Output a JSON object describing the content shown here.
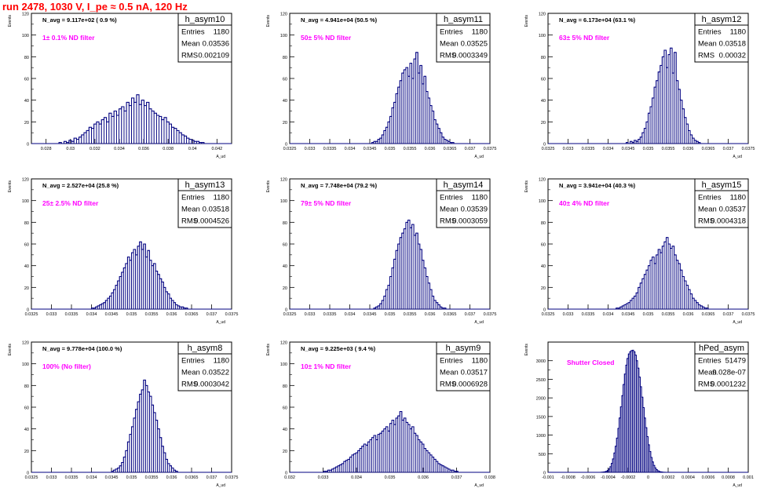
{
  "header": {
    "title": "run 2478,  1030 V, I_pe ≈ 0.5 nA, 120 Hz"
  },
  "stats_labels": {
    "entries": "Entries",
    "mean": "Mean",
    "rms": "RMS"
  },
  "colors": {
    "histogram": "#000080",
    "annotation": "#ff00ff",
    "title": "#ff0000",
    "frame": "#000000"
  },
  "chart_data": [
    {
      "type": "bar",
      "name": "h_asym10",
      "info": "N_avg = 9.117e+02 ( 0.9 %)",
      "filter": "1± 0.1% ND filter",
      "entries": "1180",
      "mean": "0.03536",
      "rms": "0.002109",
      "xlabel": "A_ud",
      "ylabel": "Events",
      "xlim": [
        0.0268,
        0.0432
      ],
      "ylim": [
        0,
        120
      ],
      "xticks": [
        "0.028",
        "0.03",
        "0.032",
        "0.034",
        "0.036",
        "0.038",
        "0.04",
        "0.042"
      ],
      "yticks": [
        "0",
        "20",
        "40",
        "60",
        "80",
        "100",
        "120"
      ],
      "values": [
        0,
        0,
        0,
        0,
        0,
        0,
        0,
        0,
        0,
        0,
        0,
        1,
        0,
        2,
        1,
        3,
        2,
        5,
        4,
        6,
        8,
        10,
        12,
        15,
        14,
        18,
        20,
        18,
        22,
        24,
        20,
        28,
        25,
        30,
        26,
        32,
        34,
        30,
        38,
        35,
        42,
        38,
        45,
        36,
        40,
        35,
        38,
        32,
        30,
        28,
        26,
        25,
        22,
        24,
        20,
        18,
        15,
        14,
        12,
        10,
        8,
        7,
        5,
        4,
        3,
        2,
        2,
        1,
        1,
        0,
        0,
        0,
        0,
        0,
        0,
        0,
        0,
        0,
        0,
        0
      ]
    },
    {
      "type": "bar",
      "name": "h_asym11",
      "info": "N_avg = 4.941e+04 (50.5 %)",
      "filter": "50± 5% ND filter",
      "entries": "1180",
      "mean": "0.03525",
      "rms": "0.0003349",
      "xlabel": "A_ud",
      "ylabel": "Events",
      "xlim": [
        0.0325,
        0.0375
      ],
      "ylim": [
        0,
        120
      ],
      "xticks": [
        "0.0325",
        "0.033",
        "0.0335",
        "0.034",
        "0.0345",
        "0.035",
        "0.0355",
        "0.036",
        "0.0365",
        "0.037",
        "0.0375"
      ],
      "yticks": [
        "0",
        "20",
        "40",
        "60",
        "80",
        "100",
        "120"
      ],
      "values": [
        0,
        0,
        0,
        0,
        0,
        0,
        0,
        0,
        0,
        0,
        0,
        0,
        0,
        0,
        0,
        0,
        0,
        0,
        0,
        0,
        0,
        0,
        0,
        0,
        0,
        0,
        0,
        0,
        0,
        0,
        0,
        0,
        0,
        0,
        0,
        0,
        0,
        0,
        0,
        0,
        0,
        1,
        2,
        2,
        4,
        5,
        8,
        12,
        15,
        20,
        25,
        33,
        38,
        46,
        52,
        58,
        65,
        68,
        70,
        62,
        74,
        60,
        78,
        84,
        65,
        72,
        55,
        62,
        48,
        42,
        35,
        30,
        22,
        18,
        14,
        10,
        6,
        4,
        3,
        2,
        1,
        1,
        0,
        0,
        0,
        0,
        0,
        0,
        0,
        0,
        0,
        0,
        0,
        0,
        0,
        0,
        0,
        0,
        0,
        0
      ]
    },
    {
      "type": "bar",
      "name": "h_asym12",
      "info": "N_avg = 6.173e+04 (63.1 %)",
      "filter": "63± 5% ND filter",
      "entries": "1180",
      "mean": "0.03518",
      "rms": "0.00032",
      "xlabel": "A_ud",
      "ylabel": "Events",
      "xlim": [
        0.0325,
        0.0375
      ],
      "ylim": [
        0,
        120
      ],
      "xticks": [
        "0.0325",
        "0.033",
        "0.0335",
        "0.034",
        "0.0345",
        "0.035",
        "0.0355",
        "0.036",
        "0.0365",
        "0.037",
        "0.0375"
      ],
      "yticks": [
        "0",
        "20",
        "40",
        "60",
        "80",
        "100",
        "120"
      ],
      "values": [
        0,
        0,
        0,
        0,
        0,
        0,
        0,
        0,
        0,
        0,
        0,
        0,
        0,
        0,
        0,
        0,
        0,
        0,
        0,
        0,
        0,
        0,
        0,
        0,
        0,
        0,
        0,
        0,
        0,
        0,
        0,
        0,
        0,
        0,
        0,
        0,
        0,
        0,
        0,
        1,
        0,
        2,
        1,
        3,
        2,
        4,
        6,
        10,
        14,
        20,
        28,
        34,
        42,
        52,
        58,
        66,
        72,
        80,
        86,
        70,
        82,
        88,
        65,
        84,
        58,
        50,
        40,
        32,
        24,
        18,
        12,
        8,
        5,
        3,
        2,
        1,
        0,
        0,
        0,
        0,
        0,
        0,
        0,
        0,
        0,
        0,
        0,
        0,
        0,
        0,
        0,
        0,
        0,
        0,
        0,
        0,
        0,
        0,
        0,
        0
      ]
    },
    {
      "type": "bar",
      "name": "h_asym13",
      "info": "N_avg = 2.527e+04 (25.8 %)",
      "filter": "25± 2.5% ND filter",
      "entries": "1180",
      "mean": "0.03518",
      "rms": "0.0004526",
      "xlabel": "A_ud",
      "ylabel": "Events",
      "xlim": [
        0.0325,
        0.0375
      ],
      "ylim": [
        0,
        120
      ],
      "xticks": [
        "0.0325",
        "0.033",
        "0.0335",
        "0.034",
        "0.0345",
        "0.035",
        "0.0355",
        "0.036",
        "0.0365",
        "0.037",
        "0.0375"
      ],
      "yticks": [
        "0",
        "20",
        "40",
        "60",
        "80",
        "100",
        "120"
      ],
      "values": [
        0,
        0,
        0,
        0,
        0,
        0,
        0,
        0,
        0,
        0,
        0,
        0,
        0,
        0,
        0,
        0,
        0,
        0,
        0,
        0,
        0,
        0,
        0,
        0,
        0,
        0,
        0,
        0,
        0,
        0,
        1,
        1,
        2,
        3,
        4,
        5,
        6,
        8,
        10,
        12,
        15,
        18,
        22,
        26,
        30,
        34,
        38,
        42,
        48,
        45,
        52,
        55,
        50,
        58,
        62,
        55,
        60,
        48,
        54,
        45,
        40,
        42,
        35,
        32,
        28,
        25,
        20,
        16,
        14,
        10,
        8,
        6,
        4,
        3,
        2,
        2,
        1,
        1,
        0,
        0,
        0,
        0,
        0,
        0,
        0,
        0,
        0,
        0,
        0,
        0,
        0,
        0,
        0,
        0,
        0,
        0,
        0,
        0,
        0,
        0
      ]
    },
    {
      "type": "bar",
      "name": "h_asym14",
      "info": "N_avg = 7.748e+04 (79.2 %)",
      "filter": "79± 5% ND filter",
      "entries": "1180",
      "mean": "0.03539",
      "rms": "0.0003059",
      "xlabel": "A_ud",
      "ylabel": "Events",
      "xlim": [
        0.0325,
        0.0375
      ],
      "ylim": [
        0,
        120
      ],
      "xticks": [
        "0.0325",
        "0.033",
        "0.0335",
        "0.034",
        "0.0345",
        "0.035",
        "0.0355",
        "0.036",
        "0.0365",
        "0.037",
        "0.0375"
      ],
      "yticks": [
        "0",
        "20",
        "40",
        "60",
        "80",
        "100",
        "120"
      ],
      "values": [
        0,
        0,
        0,
        0,
        0,
        0,
        0,
        0,
        0,
        0,
        0,
        0,
        0,
        0,
        0,
        0,
        0,
        0,
        0,
        0,
        0,
        0,
        0,
        0,
        0,
        0,
        0,
        0,
        0,
        0,
        0,
        0,
        0,
        0,
        0,
        0,
        0,
        0,
        0,
        0,
        0,
        0,
        1,
        2,
        3,
        5,
        8,
        12,
        18,
        22,
        30,
        38,
        46,
        54,
        60,
        66,
        70,
        74,
        80,
        82,
        75,
        78,
        68,
        70,
        60,
        55,
        45,
        38,
        30,
        24,
        18,
        12,
        8,
        6,
        4,
        2,
        1,
        1,
        0,
        0,
        0,
        0,
        0,
        0,
        0,
        0,
        0,
        0,
        0,
        0,
        0,
        0,
        0,
        0,
        0,
        0,
        0,
        0,
        0,
        0
      ]
    },
    {
      "type": "bar",
      "name": "h_asym15",
      "info": "N_avg = 3.941e+04 (40.3 %)",
      "filter": "40± 4% ND filter",
      "entries": "1180",
      "mean": "0.03537",
      "rms": "0.0004318",
      "xlabel": "A_ud",
      "ylabel": "Events",
      "xlim": [
        0.0325,
        0.0375
      ],
      "ylim": [
        0,
        120
      ],
      "xticks": [
        "0.0325",
        "0.033",
        "0.0335",
        "0.034",
        "0.0345",
        "0.035",
        "0.0355",
        "0.036",
        "0.0365",
        "0.037",
        "0.0375"
      ],
      "yticks": [
        "0",
        "20",
        "40",
        "60",
        "80",
        "100",
        "120"
      ],
      "values": [
        0,
        0,
        0,
        0,
        0,
        0,
        0,
        0,
        0,
        0,
        0,
        0,
        0,
        0,
        0,
        0,
        0,
        0,
        0,
        0,
        0,
        0,
        0,
        0,
        0,
        0,
        0,
        0,
        0,
        0,
        0,
        0,
        0,
        0,
        1,
        1,
        2,
        3,
        4,
        5,
        6,
        8,
        10,
        12,
        15,
        20,
        24,
        28,
        32,
        36,
        40,
        45,
        48,
        42,
        50,
        55,
        52,
        58,
        62,
        66,
        60,
        56,
        58,
        50,
        45,
        42,
        36,
        30,
        26,
        22,
        18,
        14,
        10,
        8,
        6,
        4,
        3,
        2,
        1,
        1,
        0,
        0,
        0,
        0,
        0,
        0,
        0,
        0,
        0,
        0,
        0,
        0,
        0,
        0,
        0,
        0,
        0,
        0,
        0,
        0
      ]
    },
    {
      "type": "bar",
      "name": "h_asym8",
      "info": "N_avg = 9.778e+04 (100.0 %)",
      "filter": "100% (No filter)",
      "entries": "1180",
      "mean": "0.03522",
      "rms": "0.0003042",
      "xlabel": "A_ud",
      "ylabel": "Events",
      "xlim": [
        0.0325,
        0.0375
      ],
      "ylim": [
        0,
        120
      ],
      "xticks": [
        "0.0325",
        "0.033",
        "0.0335",
        "0.034",
        "0.0345",
        "0.035",
        "0.0355",
        "0.036",
        "0.0365",
        "0.037",
        "0.0375"
      ],
      "yticks": [
        "0",
        "20",
        "40",
        "60",
        "80",
        "100",
        "120"
      ],
      "values": [
        0,
        0,
        0,
        0,
        0,
        0,
        0,
        0,
        0,
        0,
        0,
        0,
        0,
        0,
        0,
        0,
        0,
        0,
        0,
        0,
        0,
        0,
        0,
        0,
        0,
        0,
        0,
        0,
        0,
        0,
        0,
        0,
        0,
        0,
        0,
        0,
        0,
        0,
        0,
        0,
        1,
        2,
        3,
        4,
        6,
        9,
        14,
        20,
        28,
        35,
        42,
        50,
        58,
        65,
        72,
        76,
        85,
        80,
        74,
        70,
        62,
        55,
        48,
        40,
        32,
        24,
        18,
        12,
        8,
        6,
        4,
        2,
        1,
        0,
        0,
        0,
        0,
        0,
        0,
        0,
        0,
        0,
        0,
        0,
        0,
        0,
        0,
        0,
        0,
        0,
        0,
        0,
        0,
        0,
        0,
        0,
        0,
        0,
        0,
        0
      ]
    },
    {
      "type": "bar",
      "name": "h_asym9",
      "info": "N_avg = 9.225e+03 ( 9.4 %)",
      "filter": "10± 1% ND filter",
      "entries": "1180",
      "mean": "0.03517",
      "rms": "0.0006928",
      "xlabel": "A_ud",
      "ylabel": "Events",
      "xlim": [
        0.032,
        0.038
      ],
      "ylim": [
        0,
        120
      ],
      "xticks": [
        "0.032",
        "0.033",
        "0.034",
        "0.035",
        "0.036",
        "0.037",
        "0.038"
      ],
      "yticks": [
        "0",
        "20",
        "40",
        "60",
        "80",
        "100",
        "120"
      ],
      "values": [
        0,
        0,
        0,
        0,
        0,
        0,
        0,
        0,
        0,
        0,
        0,
        0,
        0,
        0,
        0,
        0,
        0,
        1,
        1,
        2,
        2,
        3,
        4,
        5,
        6,
        7,
        8,
        10,
        11,
        12,
        14,
        16,
        17,
        18,
        20,
        22,
        24,
        26,
        25,
        28,
        30,
        32,
        34,
        30,
        35,
        36,
        38,
        40,
        42,
        38,
        45,
        48,
        44,
        50,
        52,
        56,
        48,
        50,
        46,
        44,
        40,
        42,
        36,
        34,
        30,
        28,
        26,
        22,
        20,
        18,
        16,
        14,
        12,
        10,
        8,
        7,
        6,
        5,
        4,
        3,
        2,
        2,
        1,
        1,
        0,
        0,
        0,
        0,
        0,
        0,
        0,
        0,
        0,
        0,
        0,
        0,
        0,
        0,
        0,
        0
      ]
    },
    {
      "type": "bar",
      "name": "hPed_asym",
      "info": "",
      "filter": "Shutter Closed",
      "entries": "51479",
      "mean": "9.028e-07",
      "rms": "0.0001232",
      "xlabel": "A_ud",
      "ylabel": "Events",
      "xlim": [
        -0.001,
        0.001
      ],
      "ylim": [
        0,
        3500
      ],
      "xticks": [
        "-0.001",
        "-0.0008",
        "-0.0006",
        "-0.0004",
        "-0.0002",
        "0",
        "0.0002",
        "0.0004",
        "0.0006",
        "0.0008",
        "0.001"
      ],
      "yticks": [
        "0",
        "500",
        "1000",
        "1500",
        "2000",
        "2500",
        "3000"
      ],
      "values": [
        0,
        0,
        0,
        0,
        0,
        0,
        0,
        0,
        0,
        0,
        0,
        0,
        0,
        0,
        0,
        0,
        0,
        0,
        0,
        0,
        0,
        0,
        0,
        0,
        0,
        0,
        0,
        0,
        0,
        0,
        0,
        0,
        0,
        0,
        0,
        0,
        0,
        0,
        0,
        1,
        2,
        4,
        8,
        15,
        28,
        50,
        90,
        150,
        240,
        360,
        520,
        700,
        920,
        1180,
        1460,
        1760,
        2060,
        2360,
        2640,
        2880,
        3060,
        3180,
        3240,
        3270,
        3280,
        3240,
        3150,
        3000,
        2800,
        2560,
        2300,
        2020,
        1740,
        1460,
        1200,
        960,
        740,
        560,
        400,
        280,
        185,
        118,
        72,
        42,
        24,
        13,
        7,
        3,
        2,
        1,
        0,
        0,
        0,
        0,
        0,
        0,
        0,
        0,
        0,
        0,
        0,
        0,
        0,
        0,
        0,
        0,
        0,
        0,
        0,
        0,
        0,
        0,
        0,
        0,
        0,
        0,
        0,
        0,
        0,
        0,
        0,
        0,
        0,
        0,
        0,
        0,
        0,
        0,
        0,
        0,
        0,
        0,
        0,
        0,
        0,
        0,
        0,
        0,
        0,
        0,
        0,
        0,
        0,
        0,
        0,
        0,
        0,
        0,
        0,
        0,
        0,
        0
      ]
    }
  ]
}
